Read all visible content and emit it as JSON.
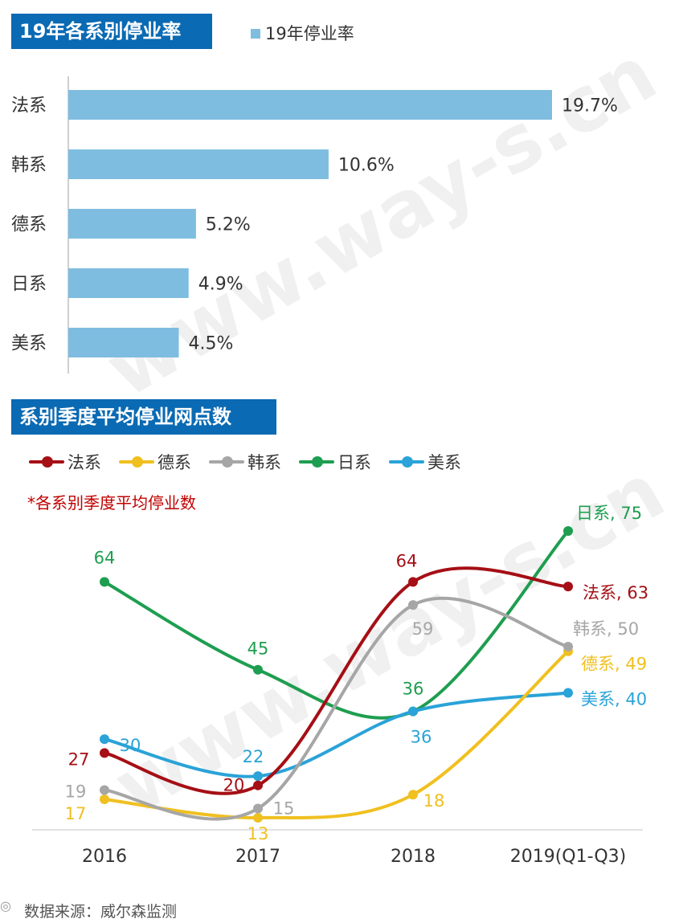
{
  "bar_chart": {
    "title": "19年各系别停业率",
    "legend": "19年停业率",
    "color": "#7fbde0"
  },
  "line_chart": {
    "title": "系别季度平均停业网点数",
    "note": "*各系别季度平均停业数"
  },
  "source": "数据来源：威尔森监测",
  "watermark": "www.way-s.cn",
  "chart_data": [
    {
      "type": "bar",
      "orientation": "horizontal",
      "title": "19年各系别停业率",
      "categories": [
        "法系",
        "韩系",
        "德系",
        "日系",
        "美系"
      ],
      "values": [
        19.7,
        10.6,
        5.2,
        4.9,
        4.5
      ],
      "value_labels": [
        "19.7%",
        "10.6%",
        "5.2%",
        "4.9%",
        "4.5%"
      ],
      "legend": [
        "19年停业率"
      ],
      "xlim": [
        0,
        20
      ]
    },
    {
      "type": "line",
      "title": "系别季度平均停业网点数",
      "categories": [
        "2016",
        "2017",
        "2018",
        "2019(Q1-Q3)"
      ],
      "ylim": [
        10,
        80
      ],
      "series": [
        {
          "name": "法系",
          "color": "#a50f15",
          "values": [
            27,
            20,
            64,
            63
          ],
          "labels": [
            "27",
            "20",
            "64",
            "法系, 63"
          ]
        },
        {
          "name": "德系",
          "color": "#f0c020",
          "values": [
            17,
            13,
            18,
            49
          ],
          "labels": [
            "17",
            "13",
            "18",
            "德系, 49"
          ]
        },
        {
          "name": "韩系",
          "color": "#a6a6a6",
          "values": [
            19,
            15,
            59,
            50
          ],
          "labels": [
            "19",
            "15",
            "59",
            "韩系, 50"
          ]
        },
        {
          "name": "日系",
          "color": "#1e9e50",
          "values": [
            64,
            45,
            36,
            75
          ],
          "labels": [
            "64",
            "45",
            "36",
            "日系, 75"
          ]
        },
        {
          "name": "美系",
          "color": "#2aa3d8",
          "values": [
            30,
            22,
            36,
            40
          ],
          "labels": [
            "30",
            "22",
            "36",
            "美系, 40"
          ]
        }
      ]
    }
  ]
}
